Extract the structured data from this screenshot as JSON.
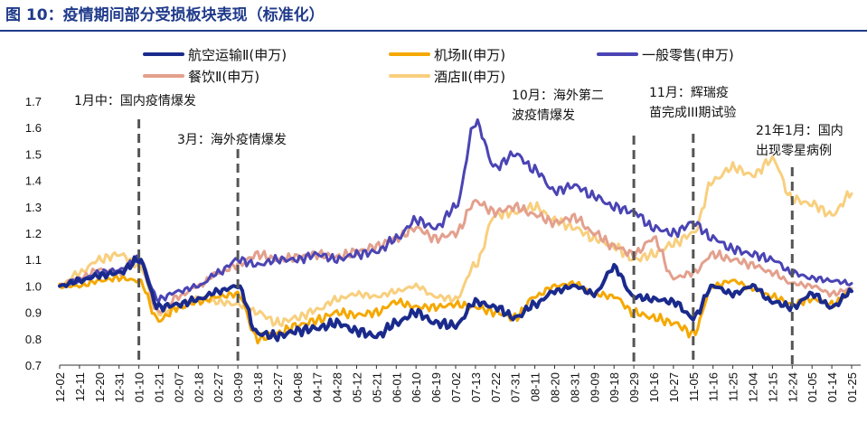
{
  "figure": {
    "title": "图 10：疫情期间部分受损板块表现（标准化）"
  },
  "colors": {
    "navy": "#1a2a8c",
    "orange": "#f5a800",
    "purple": "#4a44b4",
    "salmon": "#e3a08d",
    "cream": "#f8cf7e",
    "event": "#555555"
  },
  "chart_data": {
    "type": "line",
    "title": "疫情期间部分受损板块表现（标准化）",
    "xlabel": "",
    "ylabel": "",
    "ylim": [
      0.7,
      1.7
    ],
    "yticks": [
      "0.7",
      "0.8",
      "0.9",
      "1.0",
      "1.1",
      "1.2",
      "1.3",
      "1.4",
      "1.5",
      "1.6",
      "1.7"
    ],
    "categories": [
      "12-02",
      "12-11",
      "12-20",
      "12-31",
      "01-10",
      "01-21",
      "02-07",
      "02-18",
      "02-27",
      "03-09",
      "03-18",
      "03-27",
      "04-08",
      "04-17",
      "04-28",
      "05-12",
      "05-21",
      "06-01",
      "06-10",
      "06-19",
      "07-02",
      "07-13",
      "07-22",
      "07-31",
      "08-11",
      "08-20",
      "08-31",
      "09-09",
      "09-18",
      "09-29",
      "10-16",
      "10-27",
      "11-05",
      "11-16",
      "11-25",
      "12-04",
      "12-15",
      "12-24",
      "01-05",
      "01-14",
      "01-25"
    ],
    "series": [
      {
        "name": "航空运输Ⅱ(申万)",
        "color": "#1a2a8c",
        "width": 4,
        "values": [
          1.0,
          1.02,
          1.04,
          1.05,
          1.1,
          0.92,
          0.93,
          0.95,
          0.98,
          1.0,
          0.82,
          0.81,
          0.83,
          0.84,
          0.86,
          0.83,
          0.81,
          0.86,
          0.9,
          0.86,
          0.85,
          0.94,
          0.92,
          0.88,
          0.93,
          0.98,
          1.0,
          0.97,
          1.07,
          0.96,
          0.95,
          0.94,
          0.88,
          1.0,
          0.97,
          1.0,
          0.94,
          0.92,
          0.97,
          0.92,
          0.98
        ]
      },
      {
        "name": "机场Ⅱ(申万)",
        "color": "#f5a800",
        "width": 3,
        "values": [
          1.0,
          1.0,
          1.02,
          1.03,
          1.02,
          0.87,
          0.92,
          0.94,
          0.96,
          0.97,
          0.8,
          0.82,
          0.85,
          0.87,
          0.9,
          0.89,
          0.9,
          0.94,
          0.92,
          0.92,
          0.93,
          0.92,
          0.9,
          0.88,
          0.96,
          1.0,
          1.01,
          0.97,
          0.96,
          0.9,
          0.88,
          0.86,
          0.82,
          1.0,
          1.02,
          0.99,
          0.96,
          0.93,
          0.95,
          0.93,
          0.98
        ]
      },
      {
        "name": "一般零售(申万)",
        "color": "#4a44b4",
        "width": 3,
        "values": [
          1.0,
          1.02,
          1.05,
          1.06,
          1.1,
          0.95,
          0.98,
          1.0,
          1.05,
          1.1,
          1.08,
          1.1,
          1.1,
          1.12,
          1.1,
          1.12,
          1.13,
          1.18,
          1.25,
          1.22,
          1.3,
          1.62,
          1.45,
          1.5,
          1.44,
          1.36,
          1.38,
          1.34,
          1.3,
          1.28,
          1.22,
          1.2,
          1.24,
          1.18,
          1.14,
          1.12,
          1.1,
          1.05,
          1.03,
          1.02,
          1.01
        ]
      },
      {
        "name": "餐饮Ⅱ(申万)",
        "color": "#e3a08d",
        "width": 3,
        "values": [
          1.0,
          1.03,
          1.06,
          1.05,
          1.1,
          0.9,
          0.96,
          1.0,
          1.05,
          1.08,
          1.12,
          1.1,
          1.11,
          1.12,
          1.11,
          1.13,
          1.15,
          1.18,
          1.22,
          1.18,
          1.2,
          1.32,
          1.28,
          1.3,
          1.27,
          1.24,
          1.26,
          1.2,
          1.15,
          1.12,
          1.18,
          1.03,
          1.05,
          1.12,
          1.1,
          1.08,
          1.05,
          1.01,
          1.0,
          0.97,
          0.99
        ]
      },
      {
        "name": "酒店Ⅱ(申万)",
        "color": "#f8cf7e",
        "width": 3,
        "values": [
          1.0,
          1.05,
          1.1,
          1.12,
          1.08,
          0.9,
          0.92,
          0.95,
          0.94,
          0.93,
          0.9,
          0.86,
          0.88,
          0.91,
          0.95,
          0.97,
          0.96,
          0.98,
          1.0,
          0.96,
          0.95,
          1.08,
          1.27,
          1.28,
          1.3,
          1.25,
          1.22,
          1.18,
          1.15,
          1.1,
          1.12,
          1.16,
          1.2,
          1.4,
          1.45,
          1.42,
          1.48,
          1.33,
          1.31,
          1.27,
          1.35
        ]
      }
    ],
    "legend": [
      "航空运输Ⅱ(申万)",
      "机场Ⅱ(申万)",
      "一般零售(申万)",
      "餐饮Ⅱ(申万)",
      "酒店Ⅱ(申万)"
    ],
    "events": [
      {
        "x": "01-10",
        "lines": [
          "1月中：国内疫情爆发"
        ]
      },
      {
        "x": "03-09",
        "lines": [
          "3月：海外疫情爆发"
        ]
      },
      {
        "x": "09-29",
        "lines": [
          "10月：海外第二",
          "波疫情爆发"
        ]
      },
      {
        "x": "11-05",
        "lines": [
          "11月：辉瑞疫",
          "苗完成III期试验"
        ]
      },
      {
        "x": "12-24",
        "lines": [
          "21年1月：国内",
          "出现零星病例"
        ]
      }
    ]
  }
}
